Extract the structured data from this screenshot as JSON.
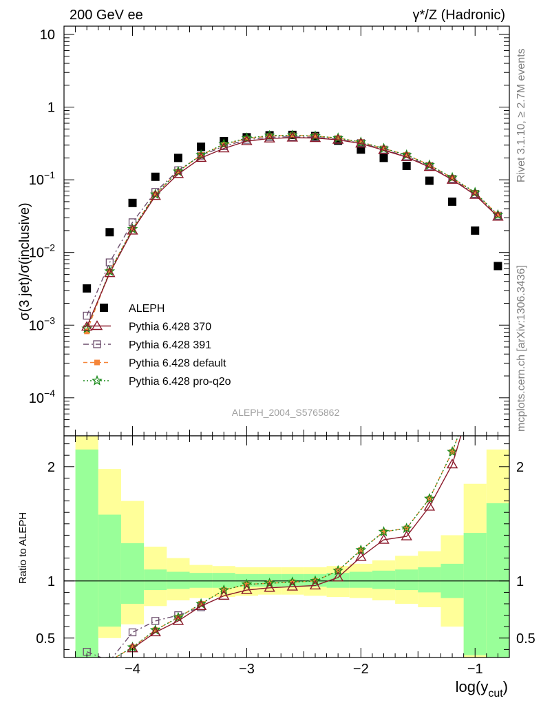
{
  "header": {
    "energy": "200 GeV ee",
    "process": "γ*/Z (Hadronic)"
  },
  "side_labels": {
    "rivet": "Rivet 3.1.10, ≥ 2.7M events",
    "mcplots": "mcplots.cern.ch [arXiv:1306.3436]"
  },
  "analysis_id": "ALEPH_2004_S5765862",
  "chart_data": [
    {
      "type": "scatter",
      "panel": "main",
      "ylabel": "σ(3 jet)/σ(inclusive)",
      "yscale": "log",
      "xlim": [
        -4.6,
        -0.7
      ],
      "ylim": [
        3e-05,
        13
      ],
      "y_ticks": [
        {
          "v": 10,
          "label": "10"
        },
        {
          "v": 1,
          "label": "1"
        },
        {
          "v": 0.1,
          "label": "10",
          "exp": "−1"
        },
        {
          "v": 0.01,
          "label": "10",
          "exp": "−2"
        },
        {
          "v": 0.001,
          "label": "10",
          "exp": "−3"
        },
        {
          "v": 0.0001,
          "label": "10",
          "exp": "−4"
        }
      ],
      "legend_position": "bottom-left",
      "series": [
        {
          "name": "ALEPH",
          "color": "#000000",
          "marker": "square-filled",
          "x": [
            -4.4,
            -4.2,
            -4.0,
            -3.8,
            -3.6,
            -3.4,
            -3.2,
            -3.0,
            -2.8,
            -2.6,
            -2.4,
            -2.2,
            -2.0,
            -1.8,
            -1.6,
            -1.4,
            -1.2,
            -1.0,
            -0.8
          ],
          "y": [
            0.0032,
            0.019,
            0.048,
            0.11,
            0.2,
            0.285,
            0.34,
            0.385,
            0.41,
            0.415,
            0.4,
            0.345,
            0.26,
            0.2,
            0.155,
            0.097,
            0.05,
            0.02,
            0.0065
          ]
        },
        {
          "name": "Pythia 6.428 370",
          "color": "#8b1a2b",
          "marker": "triangle-open",
          "line": "solid",
          "x": [
            -4.4,
            -4.2,
            -4.0,
            -3.8,
            -3.6,
            -3.4,
            -3.2,
            -3.0,
            -2.8,
            -2.6,
            -2.4,
            -2.2,
            -2.0,
            -1.8,
            -1.6,
            -1.4,
            -1.2,
            -1.0,
            -0.8
          ],
          "y": [
            0.00095,
            0.0052,
            0.02,
            0.06,
            0.12,
            0.2,
            0.27,
            0.34,
            0.37,
            0.38,
            0.375,
            0.355,
            0.315,
            0.255,
            0.205,
            0.15,
            0.1,
            0.062,
            0.031
          ]
        },
        {
          "name": "Pythia 6.428 391",
          "color": "#6b4c6b",
          "marker": "square-open",
          "line": "dashdot",
          "x": [
            -4.4,
            -4.2,
            -4.0,
            -3.8,
            -3.6,
            -3.4,
            -3.2,
            -3.0,
            -2.8,
            -2.6,
            -2.4,
            -2.2,
            -2.0,
            -1.8,
            -1.6,
            -1.4,
            -1.2,
            -1.0,
            -0.8
          ],
          "y": [
            0.00135,
            0.0073,
            0.026,
            0.068,
            0.135,
            0.215,
            0.29,
            0.355,
            0.385,
            0.39,
            0.385,
            0.36,
            0.32,
            0.26,
            0.21,
            0.155,
            0.103,
            0.064,
            0.032
          ]
        },
        {
          "name": "Pythia 6.428 default",
          "color": "#f5863a",
          "marker": "square-filled-small",
          "line": "dashed",
          "x": [
            -4.4,
            -4.2,
            -4.0,
            -3.8,
            -3.6,
            -3.4,
            -3.2,
            -3.0,
            -2.8,
            -2.6,
            -2.4,
            -2.2,
            -2.0,
            -1.8,
            -1.6,
            -1.4,
            -1.2,
            -1.0,
            -0.8
          ],
          "y": [
            0.00082,
            0.0055,
            0.021,
            0.063,
            0.13,
            0.22,
            0.305,
            0.37,
            0.4,
            0.41,
            0.4,
            0.375,
            0.33,
            0.27,
            0.22,
            0.16,
            0.106,
            0.066,
            0.033
          ]
        },
        {
          "name": "Pythia 6.428 pro-q2o",
          "color": "#1a8a1a",
          "marker": "star-open",
          "line": "dotted",
          "x": [
            -4.4,
            -4.2,
            -4.0,
            -3.8,
            -3.6,
            -3.4,
            -3.2,
            -3.0,
            -2.8,
            -2.6,
            -2.4,
            -2.2,
            -2.0,
            -1.8,
            -1.6,
            -1.4,
            -1.2,
            -1.0,
            -0.8
          ],
          "y": [
            0.0009,
            0.0055,
            0.021,
            0.063,
            0.13,
            0.22,
            0.31,
            0.375,
            0.405,
            0.41,
            0.4,
            0.375,
            0.33,
            0.27,
            0.22,
            0.16,
            0.107,
            0.067,
            0.033
          ]
        }
      ]
    },
    {
      "type": "line",
      "panel": "ratio",
      "xlabel": "log(y",
      "xlabel_sub": "cut",
      "xlabel_close": ")",
      "ylabel": "Ratio to ALEPH",
      "xlim": [
        -4.6,
        -0.7
      ],
      "ylim": [
        0.33,
        2.27
      ],
      "x_ticks": [
        {
          "v": -4,
          "label": "−4"
        },
        {
          "v": -3,
          "label": "−3"
        },
        {
          "v": -2,
          "label": "−2"
        },
        {
          "v": -1,
          "label": "−1"
        }
      ],
      "y_ticks": [
        {
          "v": 2,
          "label": "2"
        },
        {
          "v": 1,
          "label": "1"
        },
        {
          "v": 0.5,
          "label": "0.5"
        }
      ],
      "bands": {
        "bin_edges": [
          -4.5,
          -4.3,
          -4.1,
          -3.9,
          -3.7,
          -3.5,
          -3.3,
          -3.1,
          -2.9,
          -2.7,
          -2.5,
          -2.3,
          -2.1,
          -1.9,
          -1.7,
          -1.5,
          -1.3,
          -1.1,
          -0.9,
          -0.7
        ],
        "outer_lo": [
          0.2,
          0.5,
          0.62,
          0.78,
          0.83,
          0.85,
          0.86,
          0.87,
          0.88,
          0.88,
          0.87,
          0.86,
          0.85,
          0.83,
          0.8,
          0.77,
          0.6,
          0.1,
          0.2
        ],
        "outer_hi": [
          2.5,
          1.98,
          1.7,
          1.3,
          1.2,
          1.14,
          1.13,
          1.12,
          1.12,
          1.12,
          1.12,
          1.13,
          1.15,
          1.18,
          1.22,
          1.26,
          1.4,
          1.85,
          2.15
        ],
        "inner_lo": [
          0.3,
          0.6,
          0.8,
          0.92,
          0.93,
          0.94,
          0.94,
          0.95,
          0.95,
          0.95,
          0.95,
          0.94,
          0.94,
          0.93,
          0.92,
          0.9,
          0.85,
          0.35,
          0.33
        ],
        "inner_hi": [
          2.15,
          1.58,
          1.33,
          1.1,
          1.08,
          1.07,
          1.07,
          1.06,
          1.06,
          1.06,
          1.06,
          1.07,
          1.08,
          1.09,
          1.1,
          1.12,
          1.15,
          1.42,
          1.68
        ],
        "outer_color": "#ffff99",
        "inner_color": "#99ff99"
      },
      "series": [
        {
          "name": "Pythia 6.428 370",
          "color": "#8b1a2b",
          "marker": "triangle-open",
          "line": "solid",
          "x": [
            -4.0,
            -3.8,
            -3.6,
            -3.4,
            -3.2,
            -3.0,
            -2.8,
            -2.6,
            -2.4,
            -2.2,
            -2.0,
            -1.8,
            -1.6,
            -1.4,
            -1.2,
            -1.1
          ],
          "y": [
            0.41,
            0.55,
            0.65,
            0.78,
            0.87,
            0.92,
            0.94,
            0.95,
            0.96,
            1.03,
            1.21,
            1.36,
            1.39,
            1.65,
            2.02,
            2.35
          ]
        },
        {
          "name": "Pythia 6.428 391",
          "color": "#6b4c6b",
          "marker": "square-open",
          "line": "dashdot",
          "x": [
            -4.4,
            -4.2,
            -4.0,
            -3.8,
            -3.6,
            -3.4
          ],
          "y": [
            0.38,
            0.3,
            0.55,
            0.65,
            0.7,
            0.77
          ]
        },
        {
          "name": "Pythia 6.428 default",
          "color": "#f5863a",
          "marker": "square-filled-small",
          "line": "dashed",
          "x": [
            -4.2,
            -4.0,
            -3.8,
            -3.6,
            -3.4,
            -3.2,
            -3.0,
            -2.8,
            -2.6,
            -2.4,
            -2.2,
            -2.0,
            -1.8,
            -1.6,
            -1.4,
            -1.2,
            -1.1
          ],
          "y": [
            0.3,
            0.42,
            0.57,
            0.68,
            0.8,
            0.92,
            0.97,
            0.98,
            0.99,
            1.0,
            1.09,
            1.27,
            1.43,
            1.46,
            1.72,
            2.13,
            2.4
          ]
        },
        {
          "name": "Pythia 6.428 pro-q2o",
          "color": "#1a8a1a",
          "marker": "star-open",
          "line": "dotted",
          "x": [
            -4.2,
            -4.0,
            -3.8,
            -3.6,
            -3.4,
            -3.2,
            -3.0,
            -2.8,
            -2.6,
            -2.4,
            -2.2,
            -2.0,
            -1.8,
            -1.6,
            -1.4,
            -1.2,
            -1.1
          ],
          "y": [
            0.3,
            0.42,
            0.57,
            0.68,
            0.8,
            0.92,
            0.97,
            0.98,
            0.99,
            1.0,
            1.09,
            1.27,
            1.43,
            1.46,
            1.72,
            2.13,
            2.4
          ]
        }
      ]
    }
  ]
}
